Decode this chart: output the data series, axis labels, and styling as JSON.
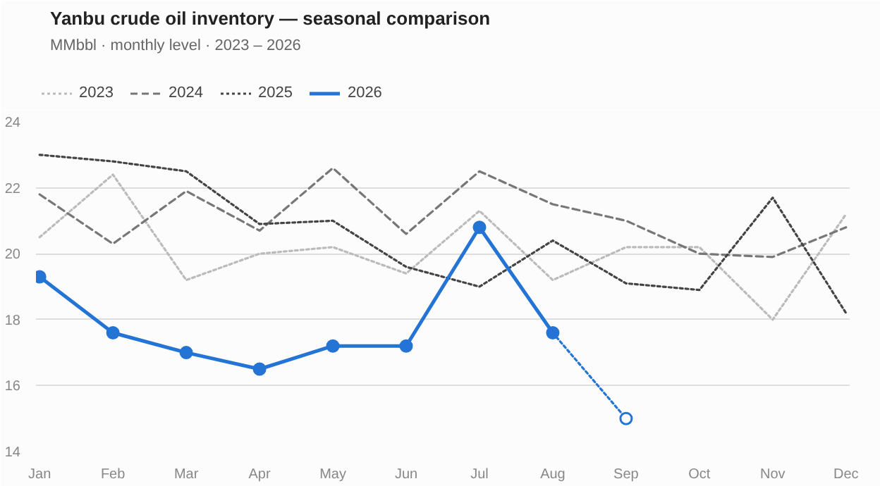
{
  "chart_data": {
    "type": "line",
    "title": "Yanbu crude oil inventory — seasonal comparison",
    "subtitle": "MMbbl · monthly level · 2023 – 2026",
    "categories": [
      "Jan",
      "Feb",
      "Mar",
      "Apr",
      "May",
      "Jun",
      "Jul",
      "Aug",
      "Sep",
      "Oct",
      "Nov",
      "Dec"
    ],
    "ylim": [
      14,
      24
    ],
    "yticks": [
      14,
      16,
      18,
      20,
      22,
      24
    ],
    "grid": "y",
    "legend": "top left",
    "marker": "none",
    "series": [
      {
        "name": "2023",
        "color": "#bbbbbb",
        "line_style": "dotted",
        "values": [
          20.5,
          22.4,
          19.2,
          20.0,
          20.2,
          19.4,
          21.3,
          19.2,
          20.2,
          20.2,
          18.0,
          21.2
        ]
      },
      {
        "name": "2024",
        "color": "#777777",
        "line_style": "dashed",
        "values": [
          21.8,
          20.3,
          21.9,
          20.7,
          22.6,
          20.6,
          22.5,
          21.5,
          21.0,
          20.0,
          19.9,
          20.8
        ]
      },
      {
        "name": "2025",
        "color": "#444444",
        "line_style": "dotted",
        "values": [
          23.0,
          22.8,
          22.5,
          20.9,
          21.0,
          19.6,
          19.0,
          20.4,
          19.1,
          18.9,
          21.7,
          18.2
        ]
      },
      {
        "name": "2026",
        "color": "#2474d6",
        "line_style": "solid",
        "marker": "circle",
        "values": [
          19.3,
          17.6,
          17.0,
          16.5,
          17.2,
          17.2,
          20.8,
          17.6,
          null,
          null,
          null,
          null
        ]
      },
      {
        "color": "#2474d6",
        "line_style": "dotted",
        "marker": "circle",
        "values": [
          null,
          null,
          null,
          null,
          null,
          null,
          null,
          17.6,
          15.0,
          null,
          null,
          null
        ]
      }
    ]
  }
}
